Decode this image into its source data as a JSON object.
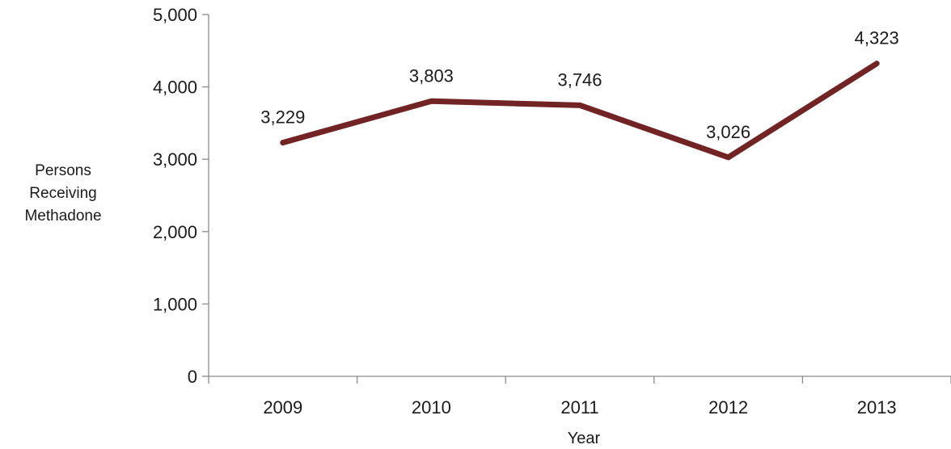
{
  "chart_data": {
    "type": "line",
    "categories": [
      "2009",
      "2010",
      "2011",
      "2012",
      "2013"
    ],
    "series": [
      {
        "values": [
          3229,
          3803,
          3746,
          3026,
          4323
        ]
      }
    ],
    "data_labels": [
      "3,229",
      "3,803",
      "3,746",
      "3,026",
      "4,323"
    ],
    "ylim": [
      0,
      5000
    ],
    "yticks": [
      0,
      1000,
      2000,
      3000,
      4000,
      5000
    ],
    "ytick_labels": [
      "0",
      "1,000",
      "2,000",
      "3,000",
      "4,000",
      "5,000"
    ],
    "xlabel": "Year",
    "ylabel": [
      "Persons",
      "Receiving",
      "Methadone"
    ],
    "grid": false,
    "legend": "none",
    "line_color": "#722424"
  }
}
